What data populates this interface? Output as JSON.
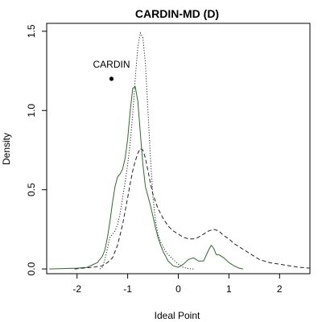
{
  "chart_data": {
    "type": "line",
    "title": "CARDIN-MD (D)",
    "xlabel": "Ideal Point",
    "ylabel": "Density",
    "xlim": [
      -2.6,
      2.6
    ],
    "ylim": [
      -0.03,
      1.55
    ],
    "xticks": [
      "-2",
      "-1",
      "0",
      "1",
      "2"
    ],
    "xtick_values": [
      -2,
      -1,
      0,
      1,
      2
    ],
    "yticks": [
      "0.0",
      "0.5",
      "1.0",
      "1.5"
    ],
    "ytick_values": [
      0,
      0.5,
      1.0,
      1.5
    ],
    "grid": false,
    "annotation": {
      "label": "CARDIN",
      "x": -1.32,
      "y": 1.2
    },
    "series": [
      {
        "style": "solid",
        "color": "#2e6b2e",
        "x": [
          -2.55,
          -2.0,
          -1.8,
          -1.6,
          -1.5,
          -1.45,
          -1.4,
          -1.35,
          -1.3,
          -1.25,
          -1.2,
          -1.15,
          -1.1,
          -1.05,
          -1.0,
          -0.95,
          -0.9,
          -0.85,
          -0.8,
          -0.75,
          -0.7,
          -0.65,
          -0.6,
          -0.55,
          -0.5,
          -0.45,
          -0.4,
          -0.35,
          -0.3,
          -0.25,
          -0.2,
          -0.1,
          0.0,
          0.1,
          0.2,
          0.3,
          0.4,
          0.5,
          0.6,
          0.65,
          0.7,
          0.75,
          0.8,
          0.9,
          1.0,
          1.1,
          1.2,
          1.28
        ],
        "y": [
          0.0,
          0.005,
          0.01,
          0.04,
          0.08,
          0.12,
          0.2,
          0.3,
          0.42,
          0.52,
          0.58,
          0.6,
          0.63,
          0.7,
          0.82,
          1.0,
          1.14,
          1.15,
          1.06,
          0.86,
          0.66,
          0.52,
          0.46,
          0.4,
          0.33,
          0.26,
          0.2,
          0.15,
          0.11,
          0.08,
          0.05,
          0.02,
          0.01,
          0.03,
          0.06,
          0.07,
          0.05,
          0.05,
          0.12,
          0.15,
          0.13,
          0.09,
          0.09,
          0.07,
          0.04,
          0.02,
          0.005,
          0.0
        ]
      },
      {
        "style": "dotted",
        "color": "#222222",
        "x": [
          -1.55,
          -1.5,
          -1.45,
          -1.4,
          -1.35,
          -1.3,
          -1.25,
          -1.2,
          -1.15,
          -1.1,
          -1.05,
          -1.0,
          -0.95,
          -0.9,
          -0.85,
          -0.8,
          -0.75,
          -0.7,
          -0.65,
          -0.6,
          -0.55,
          -0.5,
          -0.45,
          -0.4,
          -0.35,
          -0.3,
          -0.25,
          -0.2,
          -0.1,
          0.0,
          0.1,
          0.2,
          0.3
        ],
        "y": [
          0.0,
          0.01,
          0.06,
          0.13,
          0.2,
          0.22,
          0.24,
          0.28,
          0.35,
          0.45,
          0.55,
          0.66,
          0.8,
          0.98,
          1.2,
          1.4,
          1.49,
          1.46,
          1.3,
          1.0,
          0.7,
          0.45,
          0.3,
          0.22,
          0.17,
          0.14,
          0.11,
          0.09,
          0.06,
          0.03,
          0.01,
          0.002,
          0.0
        ]
      },
      {
        "style": "dashed",
        "color": "#222222",
        "x": [
          -2.05,
          -1.9,
          -1.7,
          -1.5,
          -1.4,
          -1.3,
          -1.2,
          -1.1,
          -1.0,
          -0.95,
          -0.9,
          -0.85,
          -0.8,
          -0.75,
          -0.7,
          -0.65,
          -0.6,
          -0.55,
          -0.5,
          -0.4,
          -0.3,
          -0.2,
          -0.1,
          0.0,
          0.1,
          0.2,
          0.3,
          0.4,
          0.5,
          0.6,
          0.7,
          0.8,
          0.9,
          1.0,
          1.1,
          1.2,
          1.3,
          1.4,
          1.5,
          1.6,
          1.7,
          1.8,
          2.0,
          2.2,
          2.4,
          2.6
        ],
        "y": [
          0.0,
          0.005,
          0.01,
          0.02,
          0.04,
          0.07,
          0.15,
          0.28,
          0.45,
          0.54,
          0.62,
          0.68,
          0.73,
          0.76,
          0.75,
          0.7,
          0.62,
          0.54,
          0.47,
          0.38,
          0.32,
          0.27,
          0.24,
          0.22,
          0.2,
          0.19,
          0.19,
          0.2,
          0.22,
          0.24,
          0.25,
          0.24,
          0.21,
          0.19,
          0.16,
          0.14,
          0.12,
          0.1,
          0.08,
          0.06,
          0.05,
          0.04,
          0.03,
          0.02,
          0.01,
          0.005
        ]
      }
    ]
  }
}
